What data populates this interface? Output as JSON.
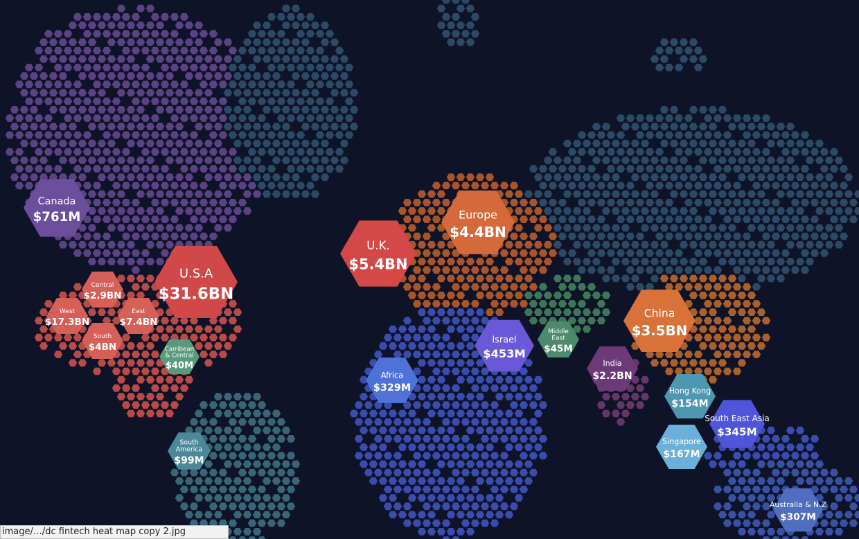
{
  "regions": [
    {
      "name": [
        "Canada"
      ],
      "value": "$761M"
    },
    {
      "name": [
        "U.S.A"
      ],
      "value": "$31.6BN"
    },
    {
      "name": [
        "Central"
      ],
      "value": "$2.9BN"
    },
    {
      "name": [
        "West"
      ],
      "value": "$17.3BN"
    },
    {
      "name": [
        "East"
      ],
      "value": "$7.4BN"
    },
    {
      "name": [
        "South"
      ],
      "value": "$4BN"
    },
    {
      "name": [
        "Carribean",
        "& Central"
      ],
      "value": "$40M"
    },
    {
      "name": [
        "South",
        "America"
      ],
      "value": "$99M"
    },
    {
      "name": [
        "U.K."
      ],
      "value": "$5.4BN"
    },
    {
      "name": [
        "Europe"
      ],
      "value": "$4.4BN"
    },
    {
      "name": [
        "Africa"
      ],
      "value": "$329M"
    },
    {
      "name": [
        "Israel"
      ],
      "value": "$453M"
    },
    {
      "name": [
        "Middle",
        "East"
      ],
      "value": "$45M"
    },
    {
      "name": [
        "India"
      ],
      "value": "$2.2BN"
    },
    {
      "name": [
        "China"
      ],
      "value": "$3.5BN"
    },
    {
      "name": [
        "Hong Kong"
      ],
      "value": "$154M"
    },
    {
      "name": [
        "South East Asia"
      ],
      "value": "$345M"
    },
    {
      "name": [
        "Singapore"
      ],
      "value": "$167M"
    },
    {
      "name": [
        "Australia & N.Z"
      ],
      "value": "$307M"
    }
  ],
  "status_bar": "image/…/dc fintech heat map copy 2.jpg"
}
